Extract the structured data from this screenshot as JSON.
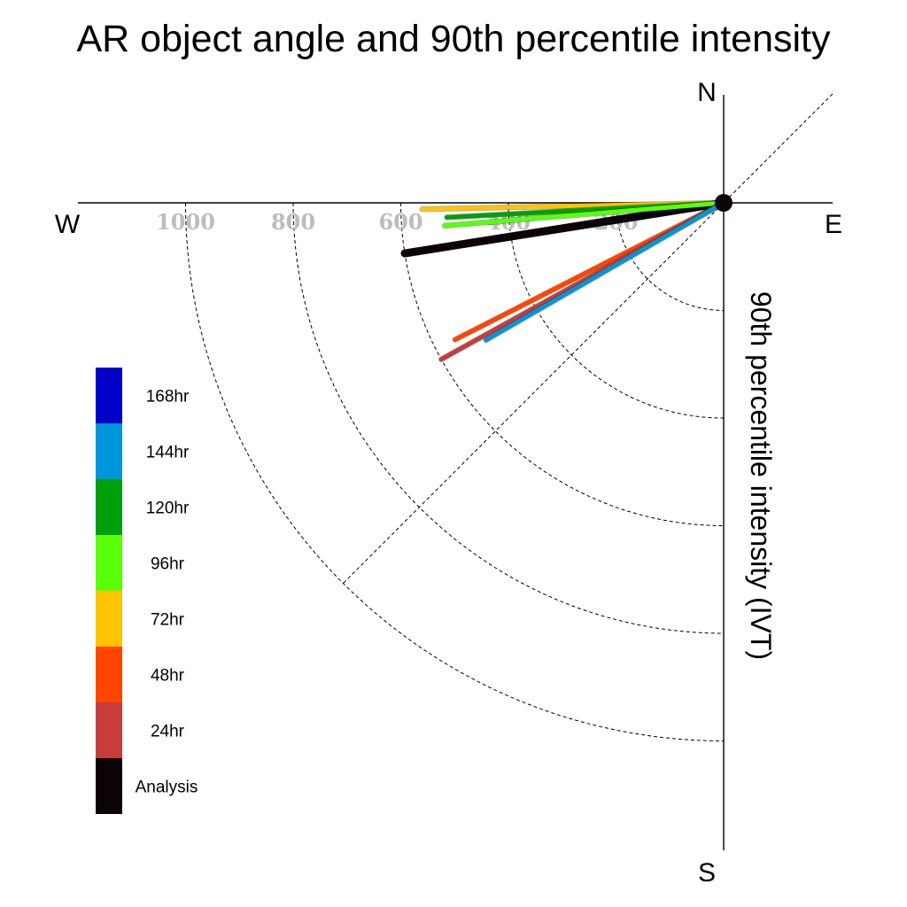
{
  "chart_data": {
    "type": "polar-vector",
    "title": "AR object angle and 90th percentile intensity",
    "ylabel": "90th percentile intensity (IVT)",
    "compass": {
      "north": "N",
      "south": "S",
      "east": "E",
      "west": "W"
    },
    "radial_ticks": [
      {
        "value": 200,
        "label": "200"
      },
      {
        "value": 400,
        "label": "400"
      },
      {
        "value": 600,
        "label": "600"
      },
      {
        "value": 800,
        "label": "800"
      },
      {
        "value": 1000,
        "label": "1000"
      }
    ],
    "rmax": 1200,
    "series": [
      {
        "name": "Analysis",
        "color": "#0c0309",
        "angle_deg": 171,
        "magnitude": 600,
        "line_width": 9
      },
      {
        "name": "72hr",
        "color": "#ffc400",
        "angle_deg": 178.8,
        "magnitude": 560,
        "line_width": 5
      },
      {
        "name": "120hr",
        "color": "#00a00c",
        "angle_deg": 177,
        "magnitude": 515,
        "line_width": 5
      },
      {
        "name": "96hr",
        "color": "#5aff0a",
        "angle_deg": 175.3,
        "magnitude": 520,
        "line_width": 5
      },
      {
        "name": "48hr",
        "color": "#ff4500",
        "angle_deg": 153,
        "magnitude": 560,
        "line_width": 5
      },
      {
        "name": "24hr",
        "color": "#c83c3c",
        "angle_deg": 151,
        "magnitude": 600,
        "line_width": 5
      },
      {
        "name": "144hr",
        "color": "#0096dc",
        "angle_deg": 150,
        "magnitude": 510,
        "line_width": 5
      }
    ],
    "legend": {
      "placement": "left",
      "items": [
        {
          "label": "168hr",
          "color": "#0000c8"
        },
        {
          "label": "144hr",
          "color": "#0096dc"
        },
        {
          "label": "120hr",
          "color": "#00a00c"
        },
        {
          "label": "96hr",
          "color": "#5aff0a"
        },
        {
          "label": "72hr",
          "color": "#ffc400"
        },
        {
          "label": "48hr",
          "color": "#ff4500"
        },
        {
          "label": "24hr",
          "color": "#c83c3c"
        },
        {
          "label": "Analysis",
          "color": "#0c0309"
        }
      ]
    }
  }
}
